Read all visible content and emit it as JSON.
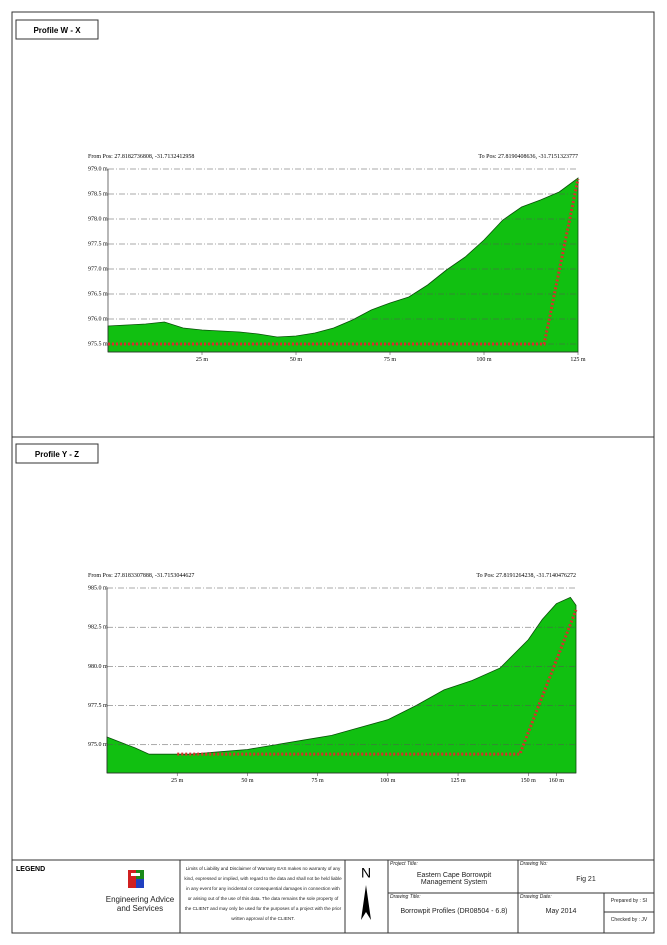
{
  "chart_data": [
    {
      "type": "area",
      "title": "Profile W - X",
      "from_label": "From Pos: 27.8182736808, -31.7132412958",
      "to_label": "To Pos: 27.8190408636, -31.7151323777",
      "xlim": [
        0,
        125
      ],
      "ylim": [
        975.34,
        979.0
      ],
      "grid": true,
      "xticks": [
        {
          "value": 25,
          "label": "25 m"
        },
        {
          "value": 50,
          "label": "50 m"
        },
        {
          "value": 75,
          "label": "75 m"
        },
        {
          "value": 100,
          "label": "100 m"
        },
        {
          "value": 125,
          "label": "125 m"
        }
      ],
      "yticks": [
        {
          "value": 975.5,
          "label": "975.5 m"
        },
        {
          "value": 976.0,
          "label": "976.0 m"
        },
        {
          "value": 976.5,
          "label": "976.5 m"
        },
        {
          "value": 977.0,
          "label": "977.0 m"
        },
        {
          "value": 977.5,
          "label": "977.5 m"
        },
        {
          "value": 978.0,
          "label": "978.0 m"
        },
        {
          "value": 978.5,
          "label": "978.5 m"
        },
        {
          "value": 979.0,
          "label": "979.0 m"
        }
      ],
      "series": [
        {
          "type": "area",
          "color": "#11c011",
          "x": [
            0,
            5,
            10,
            15,
            20,
            25,
            30,
            35,
            40,
            45,
            50,
            55,
            60,
            65,
            70,
            75,
            80,
            85,
            90,
            95,
            100,
            105,
            110,
            115,
            120,
            125
          ],
          "values": [
            975.86,
            975.88,
            975.9,
            975.94,
            975.82,
            975.78,
            975.76,
            975.74,
            975.7,
            975.64,
            975.66,
            975.72,
            975.82,
            975.98,
            976.18,
            976.32,
            976.44,
            976.68,
            976.98,
            977.24,
            977.58,
            977.98,
            978.24,
            978.38,
            978.54,
            978.82
          ]
        },
        {
          "type": "line",
          "color": "#d9302a",
          "x": [
            0,
            116,
            125
          ],
          "values": [
            975.5,
            975.5,
            978.8
          ]
        }
      ]
    },
    {
      "type": "area",
      "title": "Profile Y - Z",
      "from_label": "From Pos: 27.8183307888, -31.7153044627",
      "to_label": "To Pos: 27.8191264238, -31.7140476272",
      "xlim": [
        0,
        167
      ],
      "ylim": [
        973.2,
        985.0
      ],
      "grid": true,
      "xticks": [
        {
          "value": 25,
          "label": "25 m"
        },
        {
          "value": 50,
          "label": "50 m"
        },
        {
          "value": 75,
          "label": "75 m"
        },
        {
          "value": 100,
          "label": "100 m"
        },
        {
          "value": 125,
          "label": "125 m"
        },
        {
          "value": 150,
          "label": "150 m"
        },
        {
          "value": 160,
          "label": "160 m"
        }
      ],
      "yticks": [
        {
          "value": 975.0,
          "label": "975.0 m"
        },
        {
          "value": 977.5,
          "label": "977.5 m"
        },
        {
          "value": 980.0,
          "label": "980.0 m"
        },
        {
          "value": 982.5,
          "label": "982.5 m"
        },
        {
          "value": 985.0,
          "label": "985.0 m"
        }
      ],
      "series": [
        {
          "type": "area",
          "color": "#11c011",
          "x": [
            0,
            10,
            15,
            20,
            30,
            40,
            50,
            60,
            70,
            80,
            90,
            100,
            110,
            120,
            130,
            140,
            150,
            155,
            160,
            165,
            167
          ],
          "values": [
            975.5,
            974.8,
            974.4,
            974.4,
            974.4,
            974.55,
            974.7,
            975.0,
            975.3,
            975.6,
            976.1,
            976.6,
            977.5,
            978.5,
            979.1,
            979.9,
            981.7,
            983.0,
            984.0,
            984.4,
            983.9
          ]
        },
        {
          "type": "line",
          "color": "#d9302a",
          "x": [
            25,
            147,
            167
          ],
          "values": [
            974.4,
            974.4,
            983.6
          ]
        }
      ]
    }
  ],
  "legend": {
    "title": "LEGEND",
    "company": "Engineering Advice and Services",
    "disclaimer": "Limits of Liability and Disclaimer of Warranty EAS makes no warranty of any kind, expressed or implied, with regard to the data and shall not be held liable in any event for any incidental or consequential damages in connection with or arising out of the use of this data. The data remains the sole property of the CLIENT and may only be used for the purposes of a project with the prior written approval of the CLIENT.",
    "north": "N"
  },
  "title_block": {
    "project_title_label": "Project Title:",
    "project_title": "Eastern Cape Borrowpit Management System",
    "drawing_title_label": "Drawing Title:",
    "drawing_title": "Borrowpit Profiles (DR08504 - 6.8)",
    "drawing_no_label": "Drawing No:",
    "drawing_no": "Fig 21",
    "drawing_date_label": "Drawing Date:",
    "drawing_date": "May 2014",
    "prepared_by": "Prepared by : SI",
    "checked_by": "Checked by : JV"
  }
}
